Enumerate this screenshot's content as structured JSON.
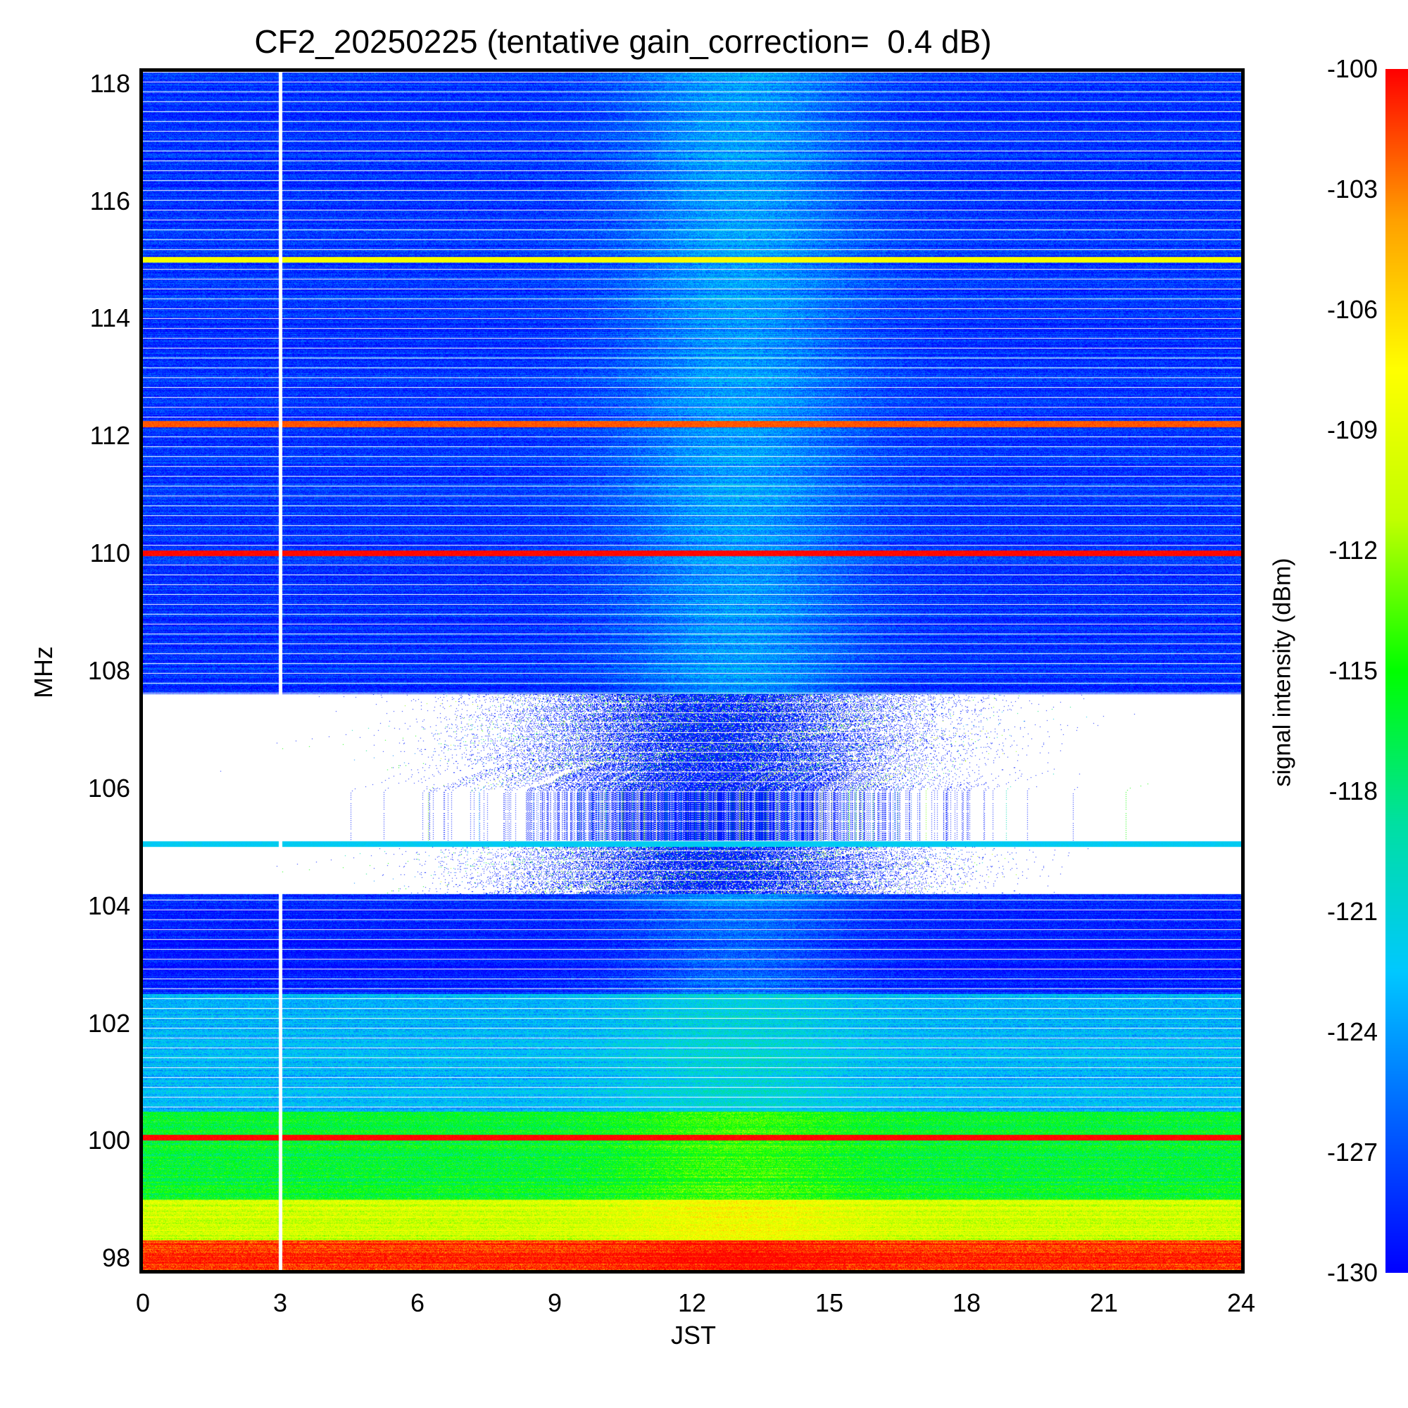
{
  "chart_data": {
    "type": "heatmap",
    "title": "CF2_20250225 (tentative gain_correction=  0.4 dB)",
    "xlabel": "JST",
    "ylabel": "MHz",
    "xlim": [
      0,
      24
    ],
    "ylim": [
      97.8,
      118.2
    ],
    "x_ticks": [
      "0",
      "3",
      "6",
      "9",
      "12",
      "15",
      "18",
      "21",
      "24"
    ],
    "x_tick_values": [
      0,
      3,
      6,
      9,
      12,
      15,
      18,
      21,
      24
    ],
    "y_ticks": [
      "98",
      "100",
      "102",
      "104",
      "106",
      "108",
      "110",
      "112",
      "114",
      "116",
      "118"
    ],
    "y_tick_values": [
      98,
      100,
      102,
      104,
      106,
      108,
      110,
      112,
      114,
      116,
      118
    ],
    "colorbar": {
      "label": "signal intensity (dBm)",
      "range": [
        -130,
        -100
      ],
      "ticks": [
        "-100",
        "-103",
        "-106",
        "-109",
        "-112",
        "-115",
        "-118",
        "-121",
        "-124",
        "-127",
        "-130"
      ],
      "tick_values": [
        -100,
        -103,
        -106,
        -109,
        -112,
        -115,
        -118,
        -121,
        -124,
        -127,
        -130
      ],
      "colormap": [
        "#0000ff",
        "#0060ff",
        "#00c8ff",
        "#00e0a0",
        "#00ff00",
        "#c0ff00",
        "#ffff00",
        "#ffa000",
        "#ff0000"
      ]
    },
    "strong_lines": [
      {
        "freq_mhz": 110.0,
        "dbm": -100
      },
      {
        "freq_mhz": 112.2,
        "dbm": -102
      },
      {
        "freq_mhz": 115.0,
        "dbm": -108
      },
      {
        "freq_mhz": 100.05,
        "dbm": -100
      },
      {
        "freq_mhz": 105.05,
        "dbm": -122
      }
    ],
    "data_gap_jst": 3.0,
    "blank_band_mhz": [
      104.2,
      107.6
    ],
    "summary": [
      {
        "freq_range_mhz": [
          108,
          118.2
        ],
        "typical_dbm": -128,
        "midday_dbm": -124
      },
      {
        "freq_range_mhz": [
          102.5,
          104
        ],
        "typical_dbm": -129,
        "midday_dbm": -126
      },
      {
        "freq_range_mhz": [
          100.5,
          102.5
        ],
        "typical_dbm": -123,
        "midday_dbm": -121
      },
      {
        "freq_range_mhz": [
          99,
          100.5
        ],
        "typical_dbm": -116,
        "midday_dbm": -114
      },
      {
        "freq_range_mhz": [
          98.3,
          99
        ],
        "typical_dbm": -110,
        "midday_dbm": -108
      },
      {
        "freq_range_mhz": [
          97.8,
          98.3
        ],
        "typical_dbm": -101,
        "midday_dbm": -100
      }
    ]
  }
}
